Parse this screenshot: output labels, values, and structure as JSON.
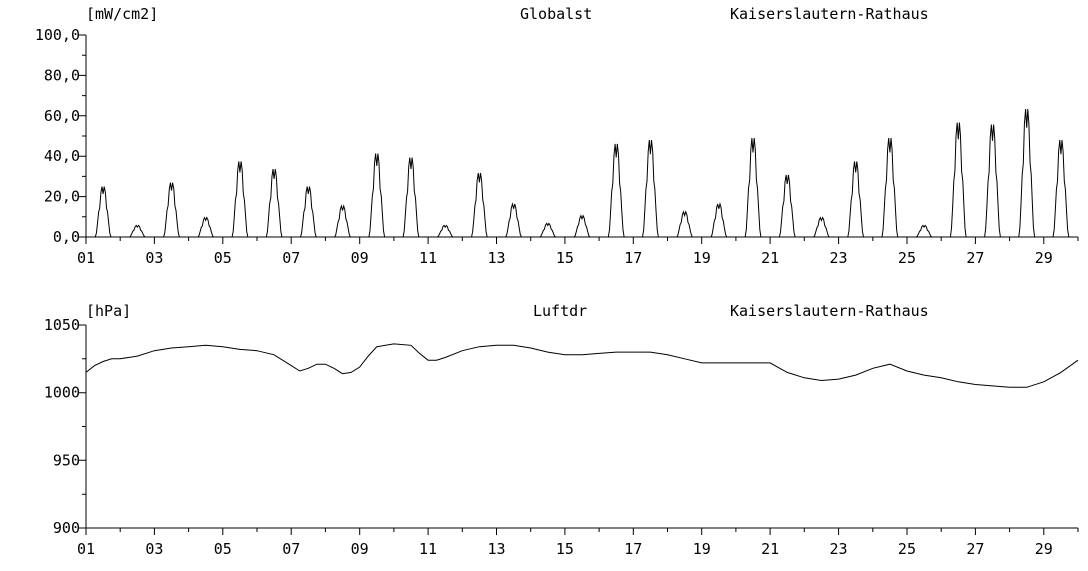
{
  "charts": [
    {
      "unit": "[mW/cm2]",
      "parameter": "Globalst",
      "station": "Kaiserslautern-Rathaus",
      "y_tick_labels": [
        "100,0",
        "80,0",
        "60,0",
        "40,0",
        "20,0",
        "0,0"
      ],
      "x_tick_labels": [
        "01",
        "03",
        "05",
        "07",
        "09",
        "11",
        "13",
        "15",
        "17",
        "19",
        "21",
        "23",
        "25",
        "27",
        "29"
      ]
    },
    {
      "unit": "[hPa]",
      "parameter": "Luftdr",
      "station": "Kaiserslautern-Rathaus",
      "y_tick_labels": [
        "1050",
        "1000",
        "950",
        "900"
      ],
      "x_tick_labels": [
        "01",
        "03",
        "05",
        "07",
        "09",
        "11",
        "13",
        "15",
        "17",
        "19",
        "21",
        "23",
        "25",
        "27",
        "29"
      ]
    }
  ],
  "chart_data": [
    {
      "type": "line",
      "ylabel": "[mW/cm2]",
      "title": "Globalst   Kaiserslautern-Rathaus",
      "xlim": [
        1,
        30
      ],
      "ylim": [
        0,
        100
      ],
      "x_ticks": [
        1,
        3,
        5,
        7,
        9,
        11,
        13,
        15,
        17,
        19,
        21,
        23,
        25,
        27,
        29
      ],
      "y_ticks": [
        0,
        20,
        40,
        60,
        80,
        100
      ],
      "series": [
        {
          "daily_peaks": [
            26,
            6,
            28,
            10,
            39,
            35,
            26,
            16,
            43,
            41,
            6,
            33,
            17,
            7,
            11,
            48,
            50,
            13,
            17,
            51,
            32,
            10,
            39,
            51,
            6,
            59,
            58,
            66,
            50
          ]
        }
      ]
    },
    {
      "type": "line",
      "ylabel": "[hPa]",
      "title": "Luftdr   Kaiserslautern-Rathaus",
      "xlim": [
        1,
        30
      ],
      "ylim": [
        900,
        1050
      ],
      "x_ticks": [
        1,
        3,
        5,
        7,
        9,
        11,
        13,
        15,
        17,
        19,
        21,
        23,
        25,
        27,
        29
      ],
      "y_ticks": [
        900,
        950,
        1000,
        1050
      ],
      "series": [
        {
          "x": [
            1.0,
            1.25,
            1.5,
            1.75,
            2.0,
            2.5,
            3.0,
            3.5,
            4.0,
            4.5,
            5.0,
            5.5,
            6.0,
            6.5,
            7.0,
            7.25,
            7.5,
            7.75,
            8.0,
            8.25,
            8.5,
            8.75,
            9.0,
            9.25,
            9.5,
            10.0,
            10.5,
            10.75,
            11.0,
            11.25,
            11.5,
            12.0,
            12.5,
            13.0,
            13.5,
            14.0,
            14.5,
            15.0,
            15.5,
            16.0,
            16.5,
            17.0,
            17.5,
            18.0,
            18.5,
            19.0,
            19.5,
            20.0,
            20.5,
            21.0,
            21.5,
            22.0,
            22.5,
            23.0,
            23.5,
            24.0,
            24.5,
            25.0,
            25.5,
            26.0,
            26.5,
            27.0,
            27.5,
            28.0,
            28.5,
            29.0,
            29.5,
            30.0
          ],
          "y": [
            1015,
            1020,
            1023,
            1025,
            1025,
            1027,
            1031,
            1033,
            1034,
            1035,
            1034,
            1032,
            1031,
            1028,
            1020,
            1016,
            1018,
            1021,
            1021,
            1018,
            1014,
            1015,
            1019,
            1027,
            1034,
            1036,
            1035,
            1029,
            1024,
            1024,
            1026,
            1031,
            1034,
            1035,
            1035,
            1033,
            1030,
            1028,
            1028,
            1029,
            1030,
            1030,
            1030,
            1028,
            1025,
            1022,
            1022,
            1022,
            1022,
            1022,
            1015,
            1011,
            1009,
            1010,
            1013,
            1018,
            1021,
            1016,
            1013,
            1011,
            1008,
            1006,
            1005,
            1004,
            1004,
            1008,
            1015,
            1024
          ]
        }
      ]
    }
  ]
}
